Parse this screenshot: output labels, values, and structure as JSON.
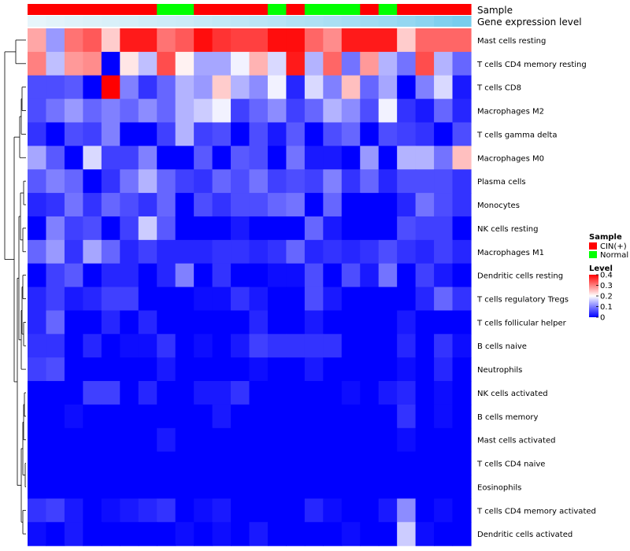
{
  "chart_data": {
    "type": "heatmap",
    "annotation_rows": [
      {
        "name": "Sample",
        "label": "Sample"
      },
      {
        "name": "Gene expression level",
        "label": "Gene expression level"
      }
    ],
    "sample_groups": [
      "CIN",
      "CIN",
      "CIN",
      "CIN",
      "CIN",
      "CIN",
      "CIN",
      "Normal",
      "Normal",
      "CIN",
      "CIN",
      "CIN",
      "CIN",
      "Normal",
      "CIN",
      "Normal",
      "Normal",
      "Normal",
      "CIN",
      "Normal",
      "CIN",
      "CIN",
      "CIN",
      "CIN"
    ],
    "expression_levels": [
      0.02,
      0.05,
      0.08,
      0.1,
      0.12,
      0.15,
      0.18,
      0.2,
      0.22,
      0.25,
      0.28,
      0.3,
      0.33,
      0.36,
      0.4,
      0.42,
      0.45,
      0.48,
      0.52,
      0.55,
      0.6,
      0.66,
      0.74,
      0.8
    ],
    "rows": [
      "Mast cells resting",
      "T cells CD4 memory resting",
      "T cells CD8",
      "Macrophages M2",
      "T cells gamma delta",
      "Macrophages M0",
      "Plasma cells",
      "Monocytes",
      "NK cells resting",
      "Macrophages M1",
      "Dendritic cells resting",
      "T cells regulatory  Tregs",
      "T cells follicular helper",
      "B cells naive",
      "Neutrophils",
      "NK cells activated",
      "B cells memory",
      "Mast cells activated",
      "T cells CD4 naive",
      "Eosinophils",
      "T cells CD4 memory activated",
      "Dendritic cells activated"
    ],
    "values": [
      [
        0.27,
        0.12,
        0.31,
        0.33,
        0.24,
        0.38,
        0.38,
        0.31,
        0.33,
        0.39,
        0.36,
        0.35,
        0.35,
        0.39,
        0.39,
        0.32,
        0.29,
        0.38,
        0.38,
        0.38,
        0.24,
        0.32,
        0.32,
        0.32
      ],
      [
        0.3,
        0.15,
        0.28,
        0.29,
        0.0,
        0.22,
        0.15,
        0.34,
        0.21,
        0.13,
        0.13,
        0.19,
        0.26,
        0.17,
        0.38,
        0.14,
        0.32,
        0.09,
        0.28,
        0.14,
        0.09,
        0.34,
        0.14,
        0.08
      ],
      [
        0.06,
        0.06,
        0.07,
        0.0,
        0.4,
        0.1,
        0.04,
        0.08,
        0.14,
        0.12,
        0.24,
        0.14,
        0.11,
        0.19,
        0.03,
        0.17,
        0.1,
        0.25,
        0.08,
        0.13,
        0.0,
        0.1,
        0.17,
        0.02
      ],
      [
        0.06,
        0.09,
        0.12,
        0.08,
        0.1,
        0.08,
        0.11,
        0.08,
        0.14,
        0.16,
        0.19,
        0.05,
        0.08,
        0.11,
        0.05,
        0.08,
        0.14,
        0.11,
        0.06,
        0.19,
        0.04,
        0.02,
        0.08,
        0.03
      ],
      [
        0.04,
        0.0,
        0.06,
        0.05,
        0.1,
        0.0,
        0.0,
        0.05,
        0.14,
        0.05,
        0.06,
        0.0,
        0.06,
        0.02,
        0.07,
        0.0,
        0.06,
        0.08,
        0.0,
        0.06,
        0.05,
        0.04,
        0.0,
        0.06
      ],
      [
        0.13,
        0.07,
        0.0,
        0.17,
        0.05,
        0.05,
        0.1,
        0.0,
        0.0,
        0.07,
        0.0,
        0.07,
        0.06,
        0.0,
        0.09,
        0.02,
        0.02,
        0.0,
        0.12,
        0.0,
        0.14,
        0.14,
        0.09,
        0.25
      ],
      [
        0.07,
        0.1,
        0.08,
        0.0,
        0.04,
        0.09,
        0.14,
        0.08,
        0.05,
        0.04,
        0.08,
        0.06,
        0.09,
        0.05,
        0.06,
        0.05,
        0.1,
        0.04,
        0.08,
        0.03,
        0.06,
        0.06,
        0.06,
        0.04
      ],
      [
        0.03,
        0.04,
        0.09,
        0.04,
        0.08,
        0.06,
        0.04,
        0.08,
        0.0,
        0.06,
        0.04,
        0.06,
        0.06,
        0.08,
        0.09,
        0.0,
        0.08,
        0.0,
        0.0,
        0.0,
        0.03,
        0.09,
        0.06,
        0.04
      ],
      [
        0.0,
        0.1,
        0.05,
        0.06,
        0.0,
        0.05,
        0.16,
        0.07,
        0.0,
        0.0,
        0.0,
        0.02,
        0.0,
        0.0,
        0.0,
        0.08,
        0.02,
        0.0,
        0.0,
        0.0,
        0.06,
        0.05,
        0.05,
        0.0
      ],
      [
        0.08,
        0.12,
        0.04,
        0.13,
        0.08,
        0.03,
        0.05,
        0.03,
        0.03,
        0.03,
        0.04,
        0.04,
        0.03,
        0.04,
        0.08,
        0.03,
        0.04,
        0.03,
        0.04,
        0.06,
        0.04,
        0.03,
        0.05,
        0.03
      ],
      [
        0.0,
        0.05,
        0.07,
        0.0,
        0.03,
        0.03,
        0.0,
        0.03,
        0.1,
        0.0,
        0.04,
        0.0,
        0.0,
        0.01,
        0.01,
        0.06,
        0.0,
        0.06,
        0.02,
        0.09,
        0.0,
        0.05,
        0.02,
        0.0
      ],
      [
        0.03,
        0.05,
        0.02,
        0.03,
        0.05,
        0.05,
        0.0,
        0.0,
        0.0,
        0.01,
        0.01,
        0.04,
        0.02,
        0.0,
        0.0,
        0.06,
        0.02,
        0.0,
        0.0,
        0.0,
        0.0,
        0.03,
        0.08,
        0.04
      ],
      [
        0.03,
        0.08,
        0.0,
        0.0,
        0.03,
        0.0,
        0.03,
        0.0,
        0.0,
        0.0,
        0.0,
        0.0,
        0.03,
        0.0,
        0.0,
        0.02,
        0.0,
        0.0,
        0.0,
        0.0,
        0.02,
        0.0,
        0.0,
        0.0
      ],
      [
        0.04,
        0.04,
        0.0,
        0.03,
        0.0,
        0.01,
        0.01,
        0.04,
        0.0,
        0.01,
        0.0,
        0.02,
        0.05,
        0.04,
        0.04,
        0.04,
        0.04,
        0.0,
        0.0,
        0.0,
        0.03,
        0.0,
        0.04,
        0.01
      ],
      [
        0.05,
        0.06,
        0.0,
        0.0,
        0.0,
        0.0,
        0.0,
        0.02,
        0.0,
        0.0,
        0.0,
        0.0,
        0.01,
        0.0,
        0.0,
        0.02,
        0.0,
        0.0,
        0.0,
        0.0,
        0.01,
        0.0,
        0.03,
        0.0
      ],
      [
        0.0,
        0.0,
        0.0,
        0.05,
        0.05,
        0.0,
        0.03,
        0.0,
        0.0,
        0.02,
        0.02,
        0.04,
        0.0,
        0.0,
        0.0,
        0.0,
        0.0,
        0.01,
        0.0,
        0.02,
        0.03,
        0.0,
        0.01,
        0.0
      ],
      [
        0.0,
        0.0,
        0.01,
        0.0,
        0.0,
        0.0,
        0.0,
        0.0,
        0.0,
        0.0,
        0.02,
        0.0,
        0.0,
        0.0,
        0.0,
        0.0,
        0.0,
        0.0,
        0.0,
        0.0,
        0.04,
        0.0,
        0.01,
        0.0
      ],
      [
        0.0,
        0.0,
        0.0,
        0.0,
        0.0,
        0.0,
        0.0,
        0.02,
        0.0,
        0.0,
        0.0,
        0.0,
        0.0,
        0.0,
        0.0,
        0.0,
        0.0,
        0.0,
        0.0,
        0.0,
        0.01,
        0.0,
        0.0,
        0.0
      ],
      [
        0.0,
        0.0,
        0.0,
        0.0,
        0.0,
        0.0,
        0.0,
        0.0,
        0.0,
        0.0,
        0.0,
        0.0,
        0.0,
        0.0,
        0.0,
        0.0,
        0.0,
        0.0,
        0.0,
        0.0,
        0.0,
        0.0,
        0.0,
        0.0
      ],
      [
        0.0,
        0.0,
        0.0,
        0.0,
        0.0,
        0.0,
        0.0,
        0.0,
        0.0,
        0.0,
        0.0,
        0.0,
        0.0,
        0.0,
        0.0,
        0.0,
        0.0,
        0.0,
        0.0,
        0.0,
        0.0,
        0.0,
        0.0,
        0.0
      ],
      [
        0.04,
        0.05,
        0.02,
        0.0,
        0.01,
        0.02,
        0.03,
        0.04,
        0.0,
        0.01,
        0.02,
        0.0,
        0.0,
        0.0,
        0.0,
        0.03,
        0.01,
        0.0,
        0.0,
        0.02,
        0.11,
        0.0,
        0.01,
        0.0
      ],
      [
        0.01,
        0.0,
        0.02,
        0.0,
        0.0,
        0.0,
        0.0,
        0.0,
        0.01,
        0.0,
        0.01,
        0.0,
        0.02,
        0.0,
        0.0,
        0.0,
        0.0,
        0.01,
        0.0,
        0.0,
        0.16,
        0.01,
        0.0,
        0.0
      ]
    ],
    "legend": {
      "sample": {
        "title": "Sample",
        "items": [
          {
            "label": "CIN(+)",
            "color": "#FF0000"
          },
          {
            "label": "Normal",
            "color": "#00FF00"
          }
        ]
      },
      "level": {
        "title": "Level",
        "ticks": [
          {
            "label": "0.4",
            "value": 0.4
          },
          {
            "label": "0.3",
            "value": 0.3
          },
          {
            "label": "0.2",
            "value": 0.2
          },
          {
            "label": "0.1",
            "value": 0.1
          },
          {
            "label": "0",
            "value": 0
          }
        ]
      }
    },
    "color_scale": {
      "low": "#0000FF",
      "mid": "#FFFFFF",
      "high": "#FF0000",
      "min": 0,
      "max": 0.4
    },
    "annotation_colors": {
      "CIN": "#FF0000",
      "Normal": "#00FF00",
      "expr_low": "#EAF6FB",
      "expr_high": "#5BC3EA"
    },
    "dendrogram_color": "#000000"
  }
}
